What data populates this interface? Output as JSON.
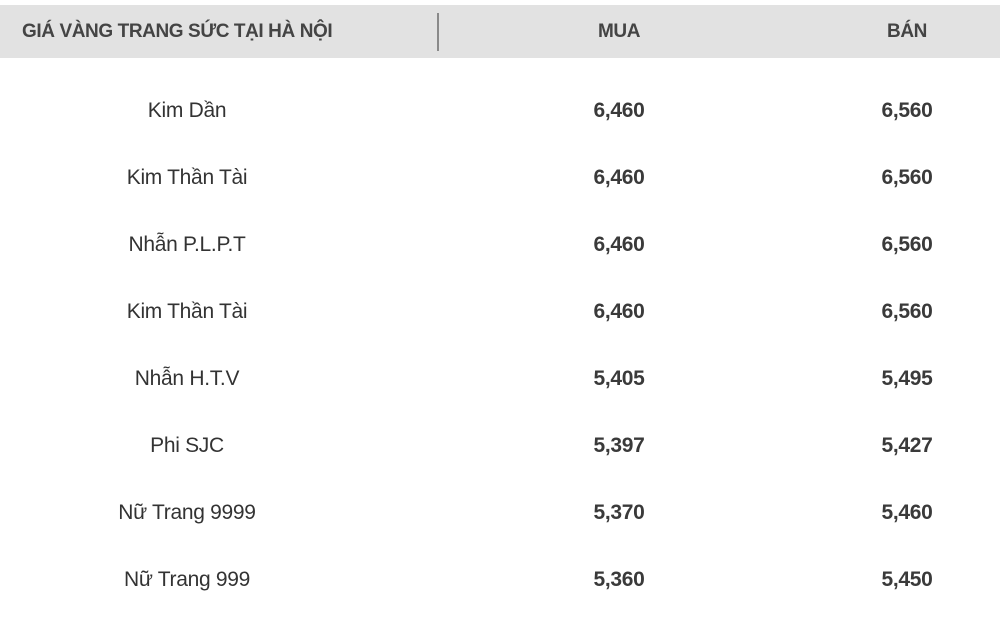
{
  "table": {
    "header": [
      "GIÁ VÀNG TRANG SỨC TẠI HÀ NỘI",
      "MUA",
      "BÁN"
    ],
    "rows": [
      [
        "Kim Dần",
        "6,460",
        "6,560"
      ],
      [
        "Kim Thần Tài",
        "6,460",
        "6,560"
      ],
      [
        "Nhẫn P.L.P.T",
        "6,460",
        "6,560"
      ],
      [
        "Kim Thần Tài",
        "6,460",
        "6,560"
      ],
      [
        "Nhẫn H.T.V",
        "5,405",
        "5,495"
      ],
      [
        "Phi SJC",
        "5,397",
        "5,427"
      ],
      [
        "Nữ Trang 9999",
        "5,370",
        "5,460"
      ],
      [
        "Nữ Trang 999",
        "5,360",
        "5,450"
      ]
    ]
  }
}
